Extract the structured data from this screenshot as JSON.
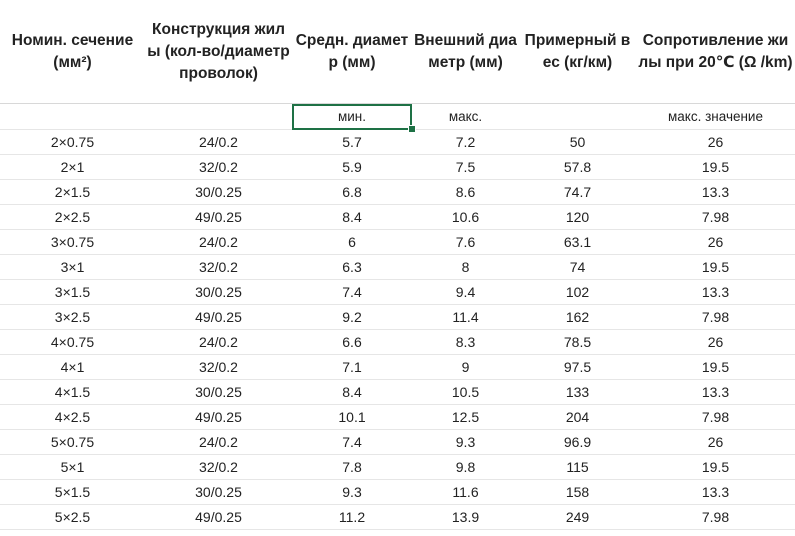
{
  "headers": [
    "Номин. сечение (мм²)",
    "Конструкция жилы (кол-во/диаметр проволок)",
    "Средн. диаметр (мм)",
    "Внешний диаметр (мм)",
    "Примерный вес (кг/км)",
    "Сопротивление жилы при 20℃ (Ω /km)"
  ],
  "subheader": [
    "",
    "",
    "мин.",
    "макс.",
    "",
    "макс. значение"
  ],
  "selected_cell": "мин.",
  "rows": [
    [
      "2×0.75",
      "24/0.2",
      "5.7",
      "7.2",
      "50",
      "26"
    ],
    [
      "2×1",
      "32/0.2",
      "5.9",
      "7.5",
      "57.8",
      "19.5"
    ],
    [
      "2×1.5",
      "30/0.25",
      "6.8",
      "8.6",
      "74.7",
      "13.3"
    ],
    [
      "2×2.5",
      "49/0.25",
      "8.4",
      "10.6",
      "120",
      "7.98"
    ],
    [
      "3×0.75",
      "24/0.2",
      "6",
      "7.6",
      "63.1",
      "26"
    ],
    [
      "3×1",
      "32/0.2",
      "6.3",
      "8",
      "74",
      "19.5"
    ],
    [
      "3×1.5",
      "30/0.25",
      "7.4",
      "9.4",
      "102",
      "13.3"
    ],
    [
      "3×2.5",
      "49/0.25",
      "9.2",
      "11.4",
      "162",
      "7.98"
    ],
    [
      "4×0.75",
      "24/0.2",
      "6.6",
      "8.3",
      "78.5",
      "26"
    ],
    [
      "4×1",
      "32/0.2",
      "7.1",
      "9",
      "97.5",
      "19.5"
    ],
    [
      "4×1.5",
      "30/0.25",
      "8.4",
      "10.5",
      "133",
      "13.3"
    ],
    [
      "4×2.5",
      "49/0.25",
      "10.1",
      "12.5",
      "204",
      "7.98"
    ],
    [
      "5×0.75",
      "24/0.2",
      "7.4",
      "9.3",
      "96.9",
      "26"
    ],
    [
      "5×1",
      "32/0.2",
      "7.8",
      "9.8",
      "115",
      "19.5"
    ],
    [
      "5×1.5",
      "30/0.25",
      "9.3",
      "11.6",
      "158",
      "13.3"
    ],
    [
      "5×2.5",
      "49/0.25",
      "11.2",
      "13.9",
      "249",
      "7.98"
    ]
  ]
}
